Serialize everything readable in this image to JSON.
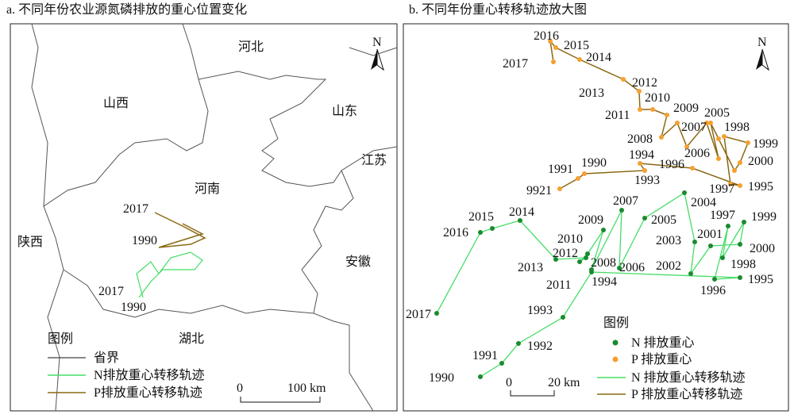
{
  "panels": [
    {
      "title": "a. 不同年份农业源氮磷排放的重心位置变化",
      "places": [
        "河北",
        "山西",
        "山东",
        "江苏",
        "河南",
        "陕西",
        "安徽",
        "湖北"
      ],
      "trajectory_labels": [
        "2017",
        "1990",
        "2017",
        "1990"
      ],
      "north": "N",
      "legend": {
        "title": "图例",
        "items": [
          "省界",
          "N排放重心转移轨迹",
          "P排放重心转移轨迹"
        ]
      },
      "scale": [
        "0",
        "100 km"
      ]
    },
    {
      "title": "b. 不同年份重心转移轨迹放大图",
      "p_labels": [
        "2016",
        "2015",
        "2014",
        "2017",
        "2013",
        "2012",
        "2010",
        "2011",
        "2009",
        "2005",
        "2007",
        "2008",
        "2006",
        "1998",
        "1999",
        "2000",
        "1996",
        "1997",
        "1995",
        "1994",
        "1993",
        "1991",
        "1990",
        "9921"
      ],
      "n_labels": [
        "2007",
        "2004",
        "1997",
        "1999",
        "2009",
        "2005",
        "2015",
        "2014",
        "2016",
        "2001",
        "2003",
        "2010",
        "2000",
        "2012",
        "2008",
        "2013",
        "2006",
        "2002",
        "1998",
        "2011",
        "1994",
        "1995",
        "1996",
        "1993",
        "2017",
        "1992",
        "1991",
        "1990"
      ],
      "north": "N",
      "legend": {
        "title": "图例",
        "items": [
          "N 排放重心",
          "P 排放重心",
          "N 排放重心转移轨迹",
          "P 排放重心转移轨迹"
        ]
      },
      "scale": [
        "0",
        "20 km"
      ]
    }
  ]
}
